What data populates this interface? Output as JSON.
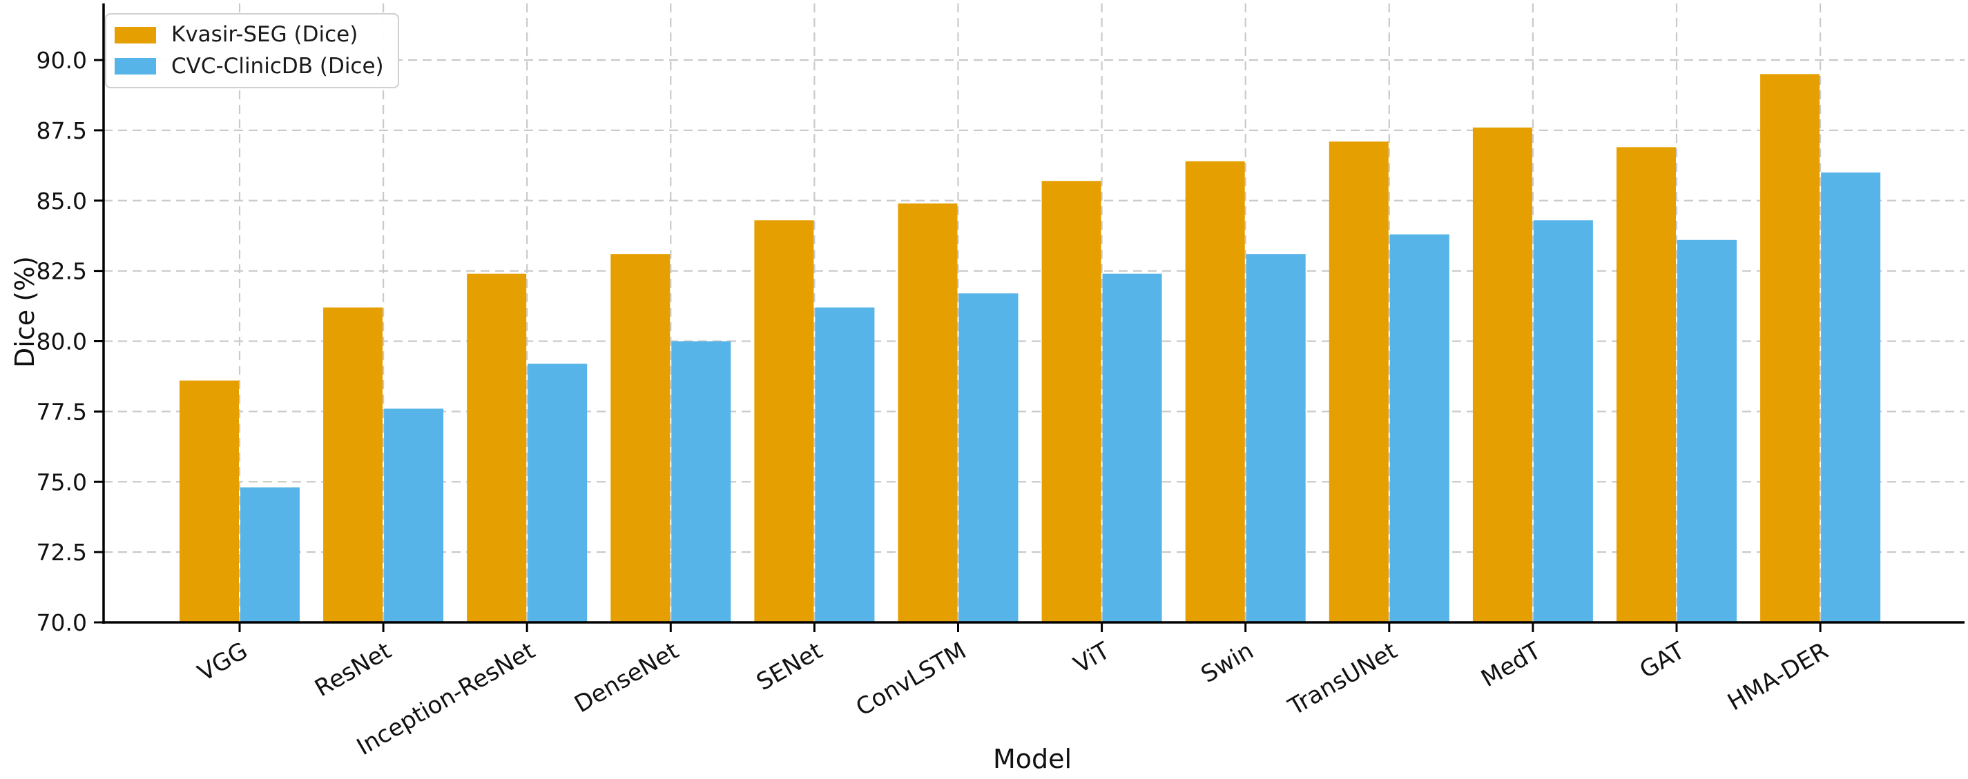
{
  "figure": {
    "background_color": "#ffffff",
    "text_color": "#111111"
  },
  "chart_data": {
    "type": "bar",
    "title": "",
    "xlabel": "Model",
    "ylabel": "Dice (%)",
    "categories": [
      "VGG",
      "ResNet",
      "Inception-ResNet",
      "DenseNet",
      "SENet",
      "ConvLSTM",
      "ViT",
      "Swin",
      "TransUNet",
      "MedT",
      "GAT",
      "HMA-DER"
    ],
    "series": [
      {
        "name": "Kvasir-SEG (Dice)",
        "color": "#E69F00",
        "values": [
          78.6,
          81.2,
          82.4,
          83.1,
          84.3,
          84.9,
          85.7,
          86.4,
          87.1,
          87.6,
          86.9,
          89.5
        ]
      },
      {
        "name": "CVC-ClinicDB (Dice)",
        "color": "#56B4E9",
        "values": [
          74.8,
          77.6,
          79.2,
          80.0,
          81.2,
          81.7,
          82.4,
          83.1,
          83.8,
          84.3,
          83.6,
          86.0
        ]
      }
    ],
    "ylim": [
      70.0,
      90.0
    ],
    "yticks": [
      70.0,
      72.5,
      75.0,
      77.5,
      80.0,
      82.5,
      85.0,
      87.5,
      90.0
    ],
    "ytick_labels": [
      "70.0",
      "72.5",
      "75.0",
      "77.5",
      "80.0",
      "82.5",
      "85.0",
      "87.5",
      "90.0"
    ],
    "grid": {
      "visible": true,
      "axis": "both",
      "style": "dashed",
      "color": "#cacaca"
    },
    "legend": {
      "position": "upper-left",
      "entries": [
        "Kvasir-SEG (Dice)",
        "CVC-ClinicDB (Dice)"
      ]
    },
    "axis_color": "#000000"
  }
}
